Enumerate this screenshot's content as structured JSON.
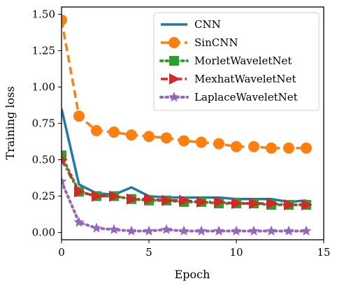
{
  "chart_data": {
    "type": "line",
    "title": "",
    "xlabel": "Epoch",
    "ylabel": "Training loss",
    "xlim": [
      0,
      15
    ],
    "ylim": [
      -0.05,
      1.55
    ],
    "xticks": [
      "0",
      "5",
      "10",
      "15"
    ],
    "yticks": [
      "0.00",
      "0.25",
      "0.50",
      "0.75",
      "1.00",
      "1.25",
      "1.50"
    ],
    "grid": false,
    "legend_position": "top-right",
    "x": [
      0,
      1,
      2,
      3,
      4,
      5,
      6,
      7,
      8,
      9,
      10,
      11,
      12,
      13,
      14
    ],
    "series": [
      {
        "name": "CNN",
        "color": "#1f77b4",
        "line": "solid",
        "marker": "none",
        "values": [
          0.85,
          0.33,
          0.27,
          0.26,
          0.31,
          0.25,
          0.24,
          0.24,
          0.24,
          0.24,
          0.23,
          0.23,
          0.23,
          0.21,
          0.22
        ]
      },
      {
        "name": "SinCNN",
        "color": "#ff7f0e",
        "line": "dashed",
        "marker": "circle",
        "values": [
          1.46,
          0.8,
          0.7,
          0.69,
          0.67,
          0.66,
          0.65,
          0.63,
          0.62,
          0.61,
          0.59,
          0.59,
          0.58,
          0.58,
          0.58
        ]
      },
      {
        "name": "MorletWaveletNet",
        "color": "#2ca02c",
        "line": "dotted",
        "marker": "square",
        "values": [
          0.53,
          0.28,
          0.25,
          0.25,
          0.23,
          0.22,
          0.22,
          0.21,
          0.21,
          0.2,
          0.2,
          0.2,
          0.19,
          0.19,
          0.19
        ]
      },
      {
        "name": "MexhatWaveletNet",
        "color": "#d62728",
        "line": "dashdot",
        "marker": "triangle-right",
        "values": [
          0.5,
          0.28,
          0.25,
          0.25,
          0.23,
          0.23,
          0.22,
          0.22,
          0.21,
          0.21,
          0.2,
          0.2,
          0.2,
          0.19,
          0.19
        ]
      },
      {
        "name": "LaplaceWaveletNet",
        "color": "#9467bd",
        "line": "dotted",
        "marker": "star",
        "values": [
          0.35,
          0.07,
          0.03,
          0.02,
          0.01,
          0.01,
          0.02,
          0.01,
          0.01,
          0.01,
          0.01,
          0.01,
          0.01,
          0.01,
          0.01
        ]
      }
    ]
  }
}
